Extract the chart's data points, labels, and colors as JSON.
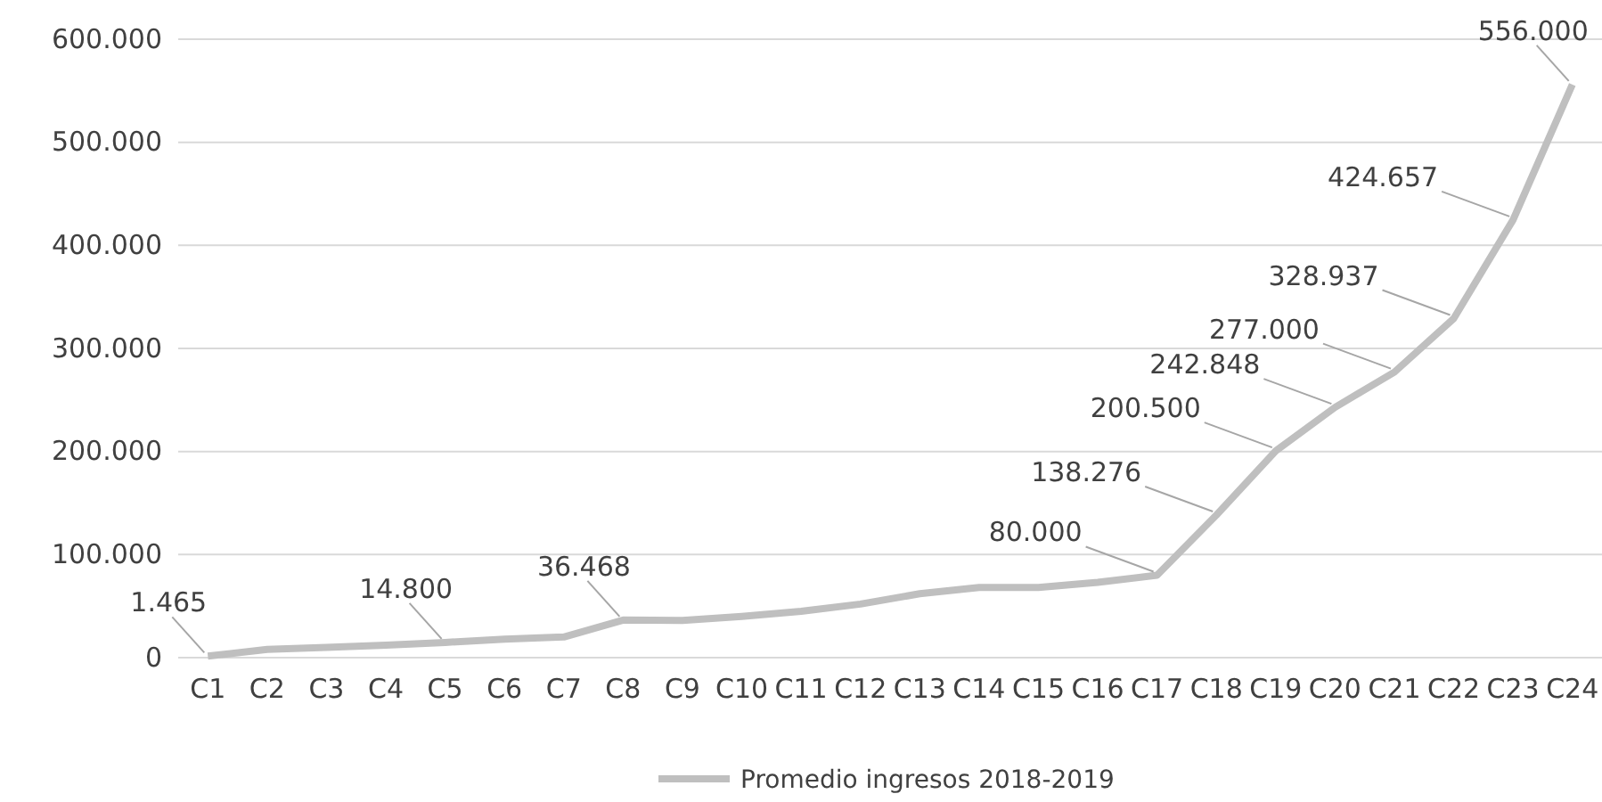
{
  "chart_data": {
    "type": "line",
    "categories": [
      "C1",
      "C2",
      "C3",
      "C4",
      "C5",
      "C6",
      "C7",
      "C8",
      "C9",
      "C10",
      "C11",
      "C12",
      "C13",
      "C14",
      "C15",
      "C16",
      "C17",
      "C18",
      "C19",
      "C20",
      "C21",
      "C22",
      "C23",
      "C24"
    ],
    "series": [
      {
        "name": "Promedio ingresos 2018-2019",
        "color": "#bfbfbf",
        "values": [
          1465,
          8000,
          10000,
          12000,
          14800,
          18000,
          20000,
          36468,
          36000,
          40000,
          45000,
          52000,
          62000,
          68000,
          68000,
          73000,
          80000,
          138276,
          200500,
          242848,
          277000,
          328937,
          424657,
          556000
        ],
        "value_labels": [
          "1.465",
          null,
          null,
          null,
          "14.800",
          null,
          null,
          "36.468",
          null,
          null,
          null,
          null,
          null,
          null,
          null,
          null,
          "80.000",
          "138.276",
          "200.500",
          "242.848",
          "277.000",
          "328.937",
          "424.657",
          "556.000"
        ]
      }
    ],
    "ylim": [
      0,
      600000
    ],
    "yticks": [
      {
        "value": 0,
        "label": "0"
      },
      {
        "value": 100000,
        "label": "100.000"
      },
      {
        "value": 200000,
        "label": "200.000"
      },
      {
        "value": 300000,
        "label": "300.000"
      },
      {
        "value": 400000,
        "label": "400.000"
      },
      {
        "value": 500000,
        "label": "500.000"
      },
      {
        "value": 600000,
        "label": "600.000"
      }
    ],
    "grid": "y",
    "legend": "bottom",
    "marker": "none",
    "line_style": "solid"
  }
}
